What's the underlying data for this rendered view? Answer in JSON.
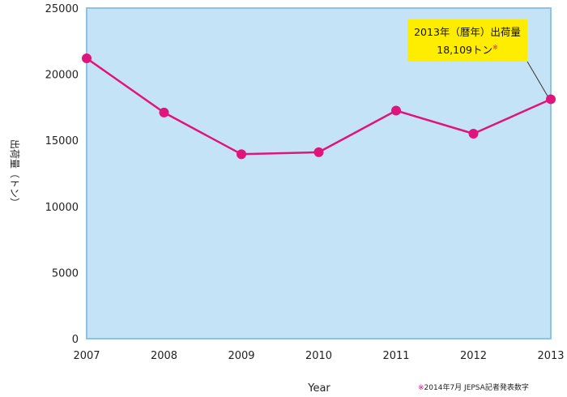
{
  "chart_data": {
    "type": "line",
    "title": "",
    "xlabel": "Year",
    "ylabel": "出荷量（トン）",
    "x": [
      "2007",
      "2008",
      "2009",
      "2010",
      "2011",
      "2012",
      "2013"
    ],
    "series": [
      {
        "values": [
          21200,
          17100,
          13950,
          14100,
          17250,
          15500,
          18109
        ]
      }
    ],
    "ylim": [
      0,
      25000
    ],
    "yticks": [
      "0",
      "5000",
      "10000",
      "15000",
      "20000",
      "25000"
    ],
    "grid": false,
    "colors": {
      "line": "#e0157c",
      "plot_bg": "#c5e3f6",
      "plot_border": "#8cc3e6"
    },
    "annotation": {
      "line1": "2013年（暦年）出荷量",
      "line2": "18,109トン",
      "mark": "※",
      "box_color": "#ffed00"
    },
    "footnote": {
      "mark": "※",
      "text": "2014年7月 JEPSA記者発表数字"
    }
  }
}
